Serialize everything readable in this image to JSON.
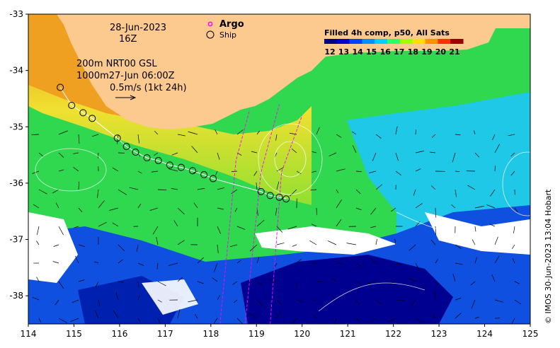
{
  "annotations": {
    "date": "28-Jun-2023",
    "hour": "16Z",
    "model_line1": "200m  NRT00 GSL",
    "model_line2": "1000m27-Jun 06:00Z",
    "scale_label": "0.5m/s (1kt 24h)"
  },
  "legend": {
    "argo_label": "Argo",
    "ship_label": "Ship",
    "argo_color": "#ff00ff"
  },
  "colorbar": {
    "title": "Filled 4h comp, p50, All Sats",
    "ticks": [
      "12",
      "13",
      "14",
      "15",
      "16",
      "17",
      "18",
      "19",
      "20",
      "21"
    ],
    "colors": [
      "#00007f",
      "#0000cc",
      "#0040ff",
      "#0090ff",
      "#00d0ff",
      "#30ff60",
      "#a0ff00",
      "#ffe000",
      "#ff9000",
      "#ff3000",
      "#990000"
    ]
  },
  "credit": "© IMOS 30-Jun-2023 13:04 Hobart",
  "axes": {
    "x_ticks": [
      "114",
      "115",
      "116",
      "117",
      "118",
      "119",
      "120",
      "121",
      "122",
      "123",
      "124",
      "125"
    ],
    "y_ticks": [
      "-33",
      "-34",
      "-35",
      "-36",
      "-37",
      "-38"
    ],
    "xlim": [
      114,
      125
    ],
    "ylim": [
      -38.5,
      -33
    ]
  },
  "ship_track": [
    [
      114.7,
      -34.3
    ],
    [
      114.95,
      -34.62
    ],
    [
      115.2,
      -34.75
    ],
    [
      115.4,
      -34.85
    ],
    [
      115.95,
      -35.2
    ],
    [
      116.15,
      -35.35
    ],
    [
      116.35,
      -35.45
    ],
    [
      116.6,
      -35.55
    ],
    [
      116.85,
      -35.6
    ],
    [
      117.1,
      -35.68
    ],
    [
      117.35,
      -35.72
    ],
    [
      117.6,
      -35.78
    ],
    [
      117.85,
      -35.85
    ],
    [
      118.05,
      -35.92
    ],
    [
      119.1,
      -36.15
    ],
    [
      119.3,
      -36.22
    ],
    [
      119.5,
      -36.25
    ],
    [
      119.65,
      -36.28
    ]
  ],
  "argo_tracks": [
    [
      [
        118.2,
        -38.5
      ],
      [
        118.55,
        -35.6
      ],
      [
        118.85,
        -34.7
      ]
    ],
    [
      [
        118.75,
        -38.5
      ],
      [
        119.1,
        -35.8
      ],
      [
        119.5,
        -34.6
      ]
    ],
    [
      [
        119.3,
        -38.5
      ],
      [
        119.55,
        -35.8
      ],
      [
        120.0,
        -34.8
      ]
    ]
  ]
}
